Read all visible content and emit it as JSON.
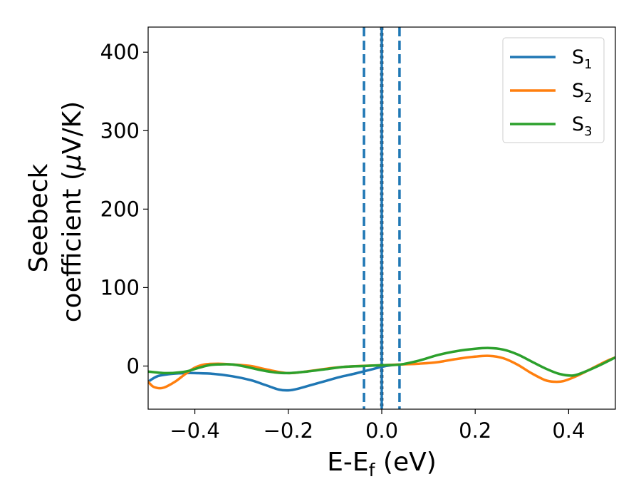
{
  "chart_data": {
    "type": "line",
    "xlabel": "E-E",
    "xlabel_sub": "f",
    "xlabel_unit": " (eV)",
    "ylabel_line1": "Seebeck",
    "ylabel_line2": "coefficient  (",
    "ylabel_mu": "μ",
    "ylabel_unit": "V/K)",
    "xlim": [
      -0.5,
      0.5
    ],
    "ylim": [
      -55,
      432
    ],
    "grid": false,
    "legend_position": "top-right",
    "xticks": [
      -0.4,
      -0.2,
      0.0,
      0.2,
      0.4
    ],
    "xtick_labels": [
      "−0.4",
      "−0.2",
      "0.0",
      "0.2",
      "0.4"
    ],
    "yticks": [
      0,
      100,
      200,
      300,
      400
    ],
    "ytick_labels": [
      "0",
      "100",
      "200",
      "300",
      "400"
    ],
    "vlines": [
      {
        "x": 0.0,
        "color": "#000000",
        "style": "dotted"
      },
      {
        "x": -0.038,
        "color": "#1f77b4",
        "style": "dashed"
      },
      {
        "x": 0.038,
        "color": "#1f77b4",
        "style": "dashed"
      },
      {
        "x": 0.0,
        "color": "#1f77b4",
        "style": "solid"
      }
    ],
    "series": [
      {
        "name": "S",
        "sub": "1",
        "color": "#1f77b4",
        "x": [
          -0.5,
          -0.48,
          -0.45,
          -0.42,
          -0.4,
          -0.36,
          -0.32,
          -0.28,
          -0.25,
          -0.22,
          -0.2,
          -0.18,
          -0.15,
          -0.12,
          -0.09,
          -0.06,
          -0.04,
          -0.02,
          0.0,
          0.02,
          0.04
        ],
        "y": [
          -20,
          -13,
          -10,
          -9,
          -9,
          -10,
          -13,
          -18,
          -24,
          -30,
          -31,
          -29,
          -24,
          -19,
          -14,
          -10,
          -7,
          -4,
          -1,
          1,
          2
        ]
      },
      {
        "name": "S",
        "sub": "2",
        "color": "#ff7f0e",
        "x": [
          -0.5,
          -0.49,
          -0.48,
          -0.47,
          -0.46,
          -0.44,
          -0.42,
          -0.4,
          -0.38,
          -0.35,
          -0.32,
          -0.28,
          -0.25,
          -0.2,
          -0.15,
          -0.1,
          -0.05,
          0.0,
          0.04,
          0.08,
          0.12,
          0.16,
          0.2,
          0.23,
          0.26,
          0.29,
          0.32,
          0.35,
          0.37,
          0.39,
          0.42,
          0.45,
          0.48,
          0.5
        ],
        "y": [
          -20,
          -26,
          -28,
          -28,
          -26,
          -19,
          -10,
          -2,
          2,
          3,
          2,
          0,
          -4,
          -9,
          -6,
          -2,
          0,
          1,
          2,
          3,
          5,
          9,
          12,
          13,
          10,
          2,
          -9,
          -18,
          -20,
          -19,
          -12,
          -3,
          6,
          11
        ]
      },
      {
        "name": "S",
        "sub": "3",
        "color": "#2ca02c",
        "x": [
          -0.5,
          -0.46,
          -0.42,
          -0.39,
          -0.37,
          -0.35,
          -0.32,
          -0.29,
          -0.26,
          -0.23,
          -0.2,
          -0.16,
          -0.12,
          -0.08,
          -0.04,
          0.0,
          0.04,
          0.08,
          0.12,
          0.16,
          0.2,
          0.23,
          0.26,
          0.29,
          0.32,
          0.35,
          0.38,
          0.41,
          0.44,
          0.47,
          0.5
        ],
        "y": [
          -7,
          -9,
          -7,
          -2,
          1,
          2,
          2,
          -1,
          -5,
          -8,
          -9,
          -7,
          -4,
          -1,
          0,
          1,
          2,
          7,
          14,
          19,
          22,
          23,
          21,
          15,
          6,
          -3,
          -10,
          -12,
          -6,
          2,
          11
        ]
      }
    ]
  }
}
